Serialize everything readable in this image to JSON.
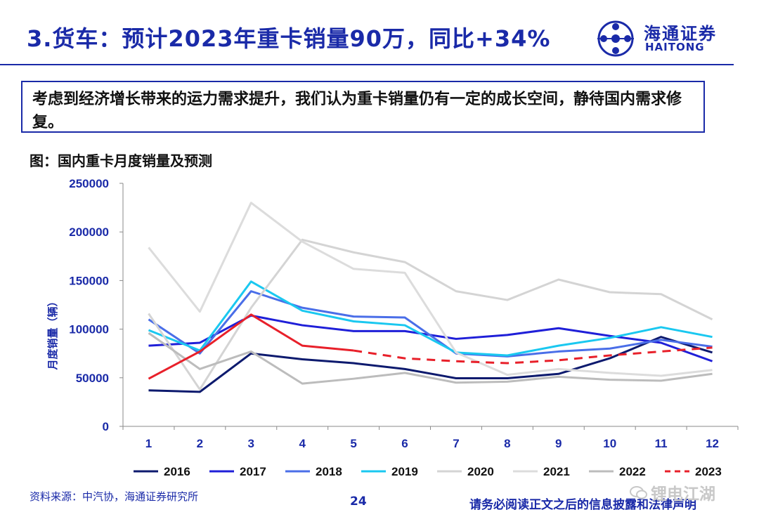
{
  "header": {
    "title": "3.货车：预计2023年重卡销量90万，同比+34%",
    "logo_cn": "海通证券",
    "logo_en": "HAITONG",
    "brand_color": "#1a2aa8"
  },
  "callout": {
    "text": "考虑到经济增长带来的运力需求提升，我们认为重卡销量仍有一定的成长空间，静待国内需求修复。"
  },
  "chart_caption": "图：国内重卡月度销量及预测",
  "chart_data": {
    "type": "line",
    "categories": [
      "1",
      "2",
      "3",
      "4",
      "5",
      "6",
      "7",
      "8",
      "9",
      "10",
      "11",
      "12"
    ],
    "ylabel": "月度销量（辆）",
    "ylim": [
      0,
      250000
    ],
    "yticks": [
      "0",
      "50000",
      "100000",
      "150000",
      "200000",
      "250000"
    ],
    "grid": false,
    "legend_position": "bottom",
    "series": [
      {
        "name": "2016",
        "color": "#0d1a6e",
        "dash": false,
        "values": [
          37000,
          35500,
          75000,
          69000,
          65000,
          59000,
          49500,
          49500,
          54000,
          70000,
          92000,
          76000
        ]
      },
      {
        "name": "2017",
        "color": "#1f1fd8",
        "dash": false,
        "values": [
          83000,
          86000,
          114000,
          104000,
          98000,
          98000,
          90000,
          94000,
          101000,
          93000,
          86000,
          67000
        ]
      },
      {
        "name": "2018",
        "color": "#4a6ee8",
        "dash": false,
        "values": [
          110000,
          75000,
          139000,
          122000,
          113000,
          112000,
          75000,
          72000,
          77000,
          80000,
          89000,
          82000
        ]
      },
      {
        "name": "2019",
        "color": "#1ac8f0",
        "dash": false,
        "values": [
          99000,
          78000,
          149000,
          119000,
          108000,
          104000,
          76000,
          73000,
          83000,
          91000,
          102000,
          92000
        ]
      },
      {
        "name": "2020",
        "color": "#d4d4d4",
        "dash": false,
        "values": [
          116000,
          38000,
          122000,
          192000,
          179000,
          169000,
          139000,
          130000,
          151000,
          138000,
          136000,
          110000
        ]
      },
      {
        "name": "2021",
        "color": "#dcdcdc",
        "dash": false,
        "values": [
          184000,
          118000,
          230000,
          190000,
          162000,
          158000,
          76000,
          53000,
          59000,
          55000,
          52000,
          58000
        ]
      },
      {
        "name": "2022",
        "color": "#bcbcbc",
        "dash": false,
        "values": [
          96000,
          59000,
          77000,
          44000,
          49000,
          55000,
          45000,
          46000,
          51000,
          48000,
          47000,
          54000
        ]
      },
      {
        "name": "2023",
        "color": "#e8202a",
        "dash": true,
        "values": [
          49000,
          77000,
          115000,
          83000,
          78000,
          70000,
          67000,
          65000,
          68000,
          73000,
          77000,
          81000
        ]
      }
    ]
  },
  "footer": {
    "source": "资料来源：中汽协，海通证券研究所",
    "page": "24",
    "disclaimer": "请务必阅读正文之后的信息披露和法律声明",
    "watermark": "锂电江湖"
  }
}
